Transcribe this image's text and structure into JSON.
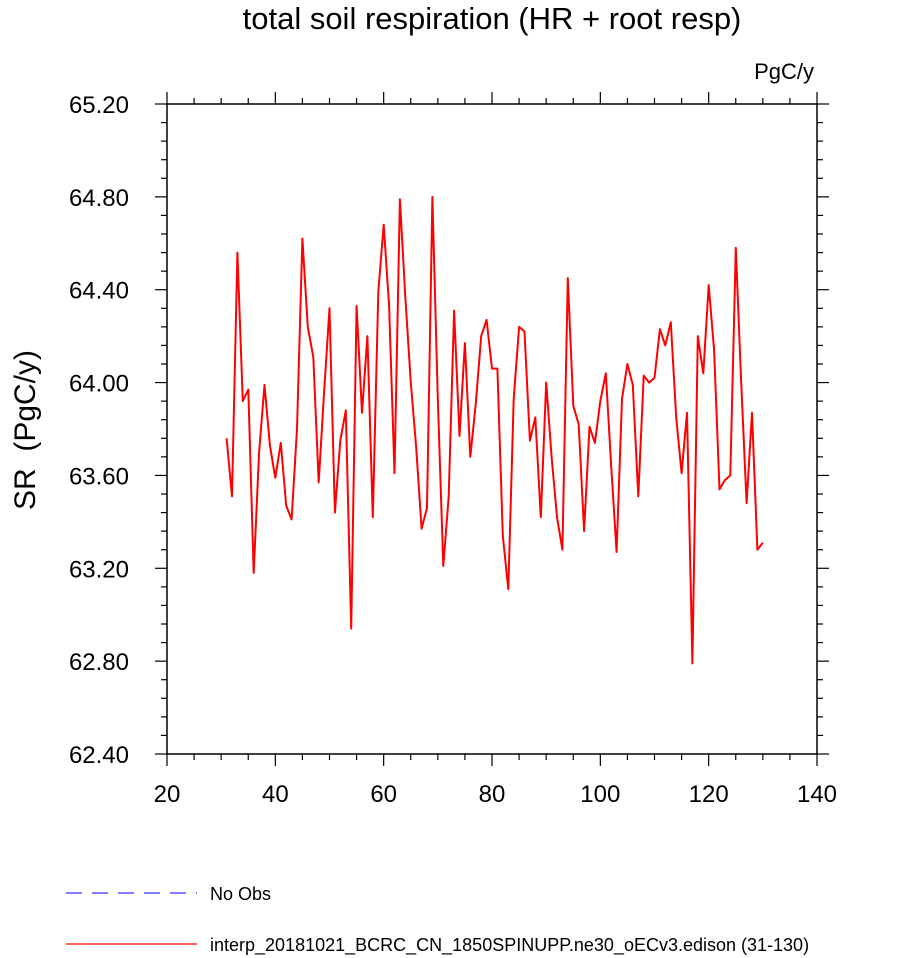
{
  "chart_data": {
    "type": "line",
    "title": "total soil respiration (HR + root resp)",
    "units_label": "PgC/y",
    "ylabel": "SR  (PgC/y)",
    "xlabel": "",
    "xlim": [
      20,
      140
    ],
    "ylim": [
      62.4,
      65.2
    ],
    "x_ticks": [
      20,
      40,
      60,
      80,
      100,
      120,
      140
    ],
    "x_tick_labels": [
      "20",
      "40",
      "60",
      "80",
      "100",
      "120",
      "140"
    ],
    "y_ticks": [
      62.4,
      62.8,
      63.2,
      63.6,
      64.0,
      64.4,
      64.8,
      65.2
    ],
    "y_tick_labels": [
      "62.40",
      "62.80",
      "63.20",
      "63.60",
      "64.00",
      "64.40",
      "64.80",
      "65.20"
    ],
    "grid": false,
    "legend": [
      {
        "label": "No Obs",
        "color": "#3333ff",
        "style": "dashed"
      },
      {
        "label": "interp_20181021_BCRC_CN_1850SPINUPP.ne30_oECv3.edison (31-130)",
        "color": "#ff0000",
        "style": "solid"
      }
    ],
    "series": [
      {
        "name": "interp_20181021_BCRC_CN_1850SPINUPP.ne30_oECv3.edison (31-130)",
        "color": "#ff0000",
        "x": [
          31,
          32,
          33,
          34,
          35,
          36,
          37,
          38,
          39,
          40,
          41,
          42,
          43,
          44,
          45,
          46,
          47,
          48,
          49,
          50,
          51,
          52,
          53,
          54,
          55,
          56,
          57,
          58,
          59,
          60,
          61,
          62,
          63,
          64,
          65,
          66,
          67,
          68,
          69,
          70,
          71,
          72,
          73,
          74,
          75,
          76,
          77,
          78,
          79,
          80,
          81,
          82,
          83,
          84,
          85,
          86,
          87,
          88,
          89,
          90,
          91,
          92,
          93,
          94,
          95,
          96,
          97,
          98,
          99,
          100,
          101,
          102,
          103,
          104,
          105,
          106,
          107,
          108,
          109,
          110,
          111,
          112,
          113,
          114,
          115,
          116,
          117,
          118,
          119,
          120,
          121,
          122,
          123,
          124,
          125,
          126,
          127,
          128,
          129,
          130
        ],
        "y": [
          63.76,
          63.51,
          64.56,
          63.92,
          63.97,
          63.18,
          63.7,
          63.99,
          63.73,
          63.59,
          63.74,
          63.47,
          63.41,
          63.8,
          64.62,
          64.24,
          64.11,
          63.57,
          63.96,
          64.32,
          63.44,
          63.75,
          63.88,
          62.94,
          64.33,
          63.87,
          64.2,
          63.42,
          64.39,
          64.68,
          64.33,
          63.61,
          64.79,
          64.37,
          64.0,
          63.72,
          63.37,
          63.46,
          64.8,
          63.93,
          63.21,
          63.51,
          64.31,
          63.77,
          64.17,
          63.68,
          63.91,
          64.2,
          64.27,
          64.06,
          64.06,
          63.34,
          63.11,
          63.93,
          64.24,
          64.22,
          63.75,
          63.85,
          63.42,
          64.0,
          63.68,
          63.42,
          63.28,
          64.45,
          63.9,
          63.82,
          63.36,
          63.81,
          63.74,
          63.92,
          64.04,
          63.64,
          63.27,
          63.93,
          64.08,
          63.99,
          63.51,
          64.03,
          64.0,
          64.02,
          64.23,
          64.16,
          64.26,
          63.85,
          63.61,
          63.87,
          62.79,
          64.2,
          64.04,
          64.42,
          64.14,
          63.54,
          63.58,
          63.6,
          64.58,
          64.0,
          63.48,
          63.87,
          63.28,
          63.31
        ]
      }
    ]
  }
}
